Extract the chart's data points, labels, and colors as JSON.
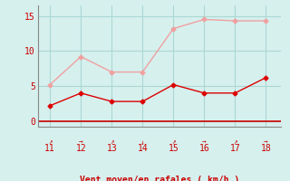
{
  "x": [
    11,
    12,
    13,
    14,
    15,
    16,
    17,
    18
  ],
  "y_rafales": [
    5.2,
    9.2,
    7.0,
    7.0,
    13.2,
    14.5,
    14.3,
    14.3
  ],
  "y_moyen": [
    2.2,
    4.0,
    2.8,
    2.8,
    5.2,
    4.0,
    4.0,
    6.2
  ],
  "color_rafales": "#f0a0a0",
  "color_moyen": "#dd0000",
  "bg_color": "#d6f0ee",
  "grid_color": "#aad8d4",
  "xlabel": "Vent moyen/en rafales ( km/h )",
  "xlabel_color": "#cc0000",
  "tick_color": "#cc0000",
  "spine_color": "#888888",
  "xlim": [
    10.6,
    18.5
  ],
  "ylim": [
    -0.8,
    16.5
  ],
  "yticks": [
    0,
    5,
    10,
    15
  ],
  "xticks": [
    11,
    12,
    13,
    14,
    15,
    16,
    17,
    18
  ],
  "wind_arrows": [
    "↗",
    "→",
    "↗",
    "↓",
    "↗",
    "→",
    "↗",
    "→"
  ]
}
